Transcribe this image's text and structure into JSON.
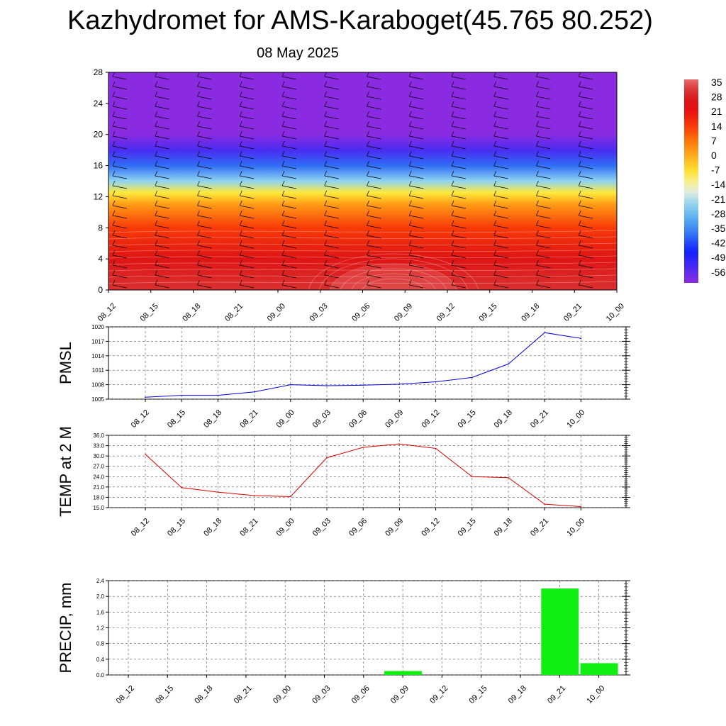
{
  "title": "Kazhydromet for AMS-Karaboget(45.765 80.252)",
  "subtitle": "08 May 2025",
  "colors": {
    "pmsl_line": "#0000dd",
    "temp_line": "#dd0000",
    "precip_bar": "#11ee11",
    "grid": "#555555"
  },
  "chart_data": [
    {
      "type": "heatmap",
      "title": "",
      "x_tick_labels": [
        "08_12",
        "08_15",
        "08_18",
        "08_21",
        "09_00",
        "09_03",
        "09_06",
        "09_09",
        "09_12",
        "09_15",
        "09_18",
        "09_21",
        "10_00"
      ],
      "y_tick_labels": [
        "0",
        "4",
        "8",
        "12",
        "16",
        "20",
        "24",
        "28"
      ],
      "ylim": [
        0,
        28
      ],
      "colorbar_labels": [
        "35",
        "28",
        "21",
        "14",
        "7",
        "0",
        "-7",
        "-14",
        "-21",
        "-28",
        "-35",
        "-42",
        "-49",
        "-56"
      ],
      "color_range": [
        -56,
        35
      ],
      "temperature_by_level": [
        {
          "level": 0,
          "value": 30
        },
        {
          "level": 4,
          "value": 24
        },
        {
          "level": 8,
          "value": 14
        },
        {
          "level": 11,
          "value": 3
        },
        {
          "level": 12.5,
          "value": -7
        },
        {
          "level": 14,
          "value": -21
        },
        {
          "level": 16,
          "value": -35
        },
        {
          "level": 18,
          "value": -49
        },
        {
          "level": 20,
          "value": -56
        },
        {
          "level": 28,
          "value": -56
        }
      ]
    },
    {
      "type": "line",
      "ylabel": "PMSL",
      "categories": [
        "08_12",
        "08_15",
        "08_18",
        "08_21",
        "09_00",
        "09_03",
        "09_06",
        "09_09",
        "09_12",
        "09_15",
        "09_18",
        "09_21",
        "10_00"
      ],
      "ylim": [
        1005,
        1020
      ],
      "y_ticks": [
        "1005",
        "1008",
        "1011",
        "1014",
        "1017",
        "1020"
      ],
      "grid": true,
      "series": [
        {
          "values": [
            1005.4,
            1005.8,
            1005.8,
            1006.5,
            1008.0,
            1007.8,
            1007.9,
            1008.1,
            1008.6,
            1009.5,
            1012.3,
            1018.8,
            1017.6
          ]
        }
      ]
    },
    {
      "type": "line",
      "ylabel": "TEMP at 2 M",
      "categories": [
        "08_12",
        "08_15",
        "08_18",
        "08_21",
        "09_00",
        "09_03",
        "09_06",
        "09_09",
        "09_12",
        "09_15",
        "09_18",
        "09_21",
        "10_00"
      ],
      "ylim": [
        15,
        36
      ],
      "y_ticks": [
        "15.0",
        "18.0",
        "21.0",
        "24.0",
        "27.0",
        "30.0",
        "33.0",
        "36.0"
      ],
      "grid": true,
      "series": [
        {
          "values": [
            30.5,
            20.8,
            19.5,
            18.5,
            18.2,
            29.5,
            32.5,
            33.5,
            32.2,
            24.0,
            23.7,
            16.0,
            15.3
          ]
        }
      ]
    },
    {
      "type": "bar",
      "ylabel": "PRECIP, mm",
      "categories": [
        "08_12",
        "08_15",
        "08_18",
        "08_21",
        "09_00",
        "09_03",
        "09_06",
        "09_09",
        "09_12",
        "09_15",
        "09_18",
        "09_21",
        "10_00"
      ],
      "values": [
        0,
        0,
        0,
        0,
        0,
        0,
        0,
        0.1,
        0,
        0,
        0,
        2.2,
        0.3
      ],
      "ylim": [
        0,
        2.4
      ],
      "y_ticks": [
        "0.0",
        "0.4",
        "0.8",
        "1.2",
        "1.6",
        "2.0",
        "2.4"
      ],
      "grid": true
    }
  ]
}
